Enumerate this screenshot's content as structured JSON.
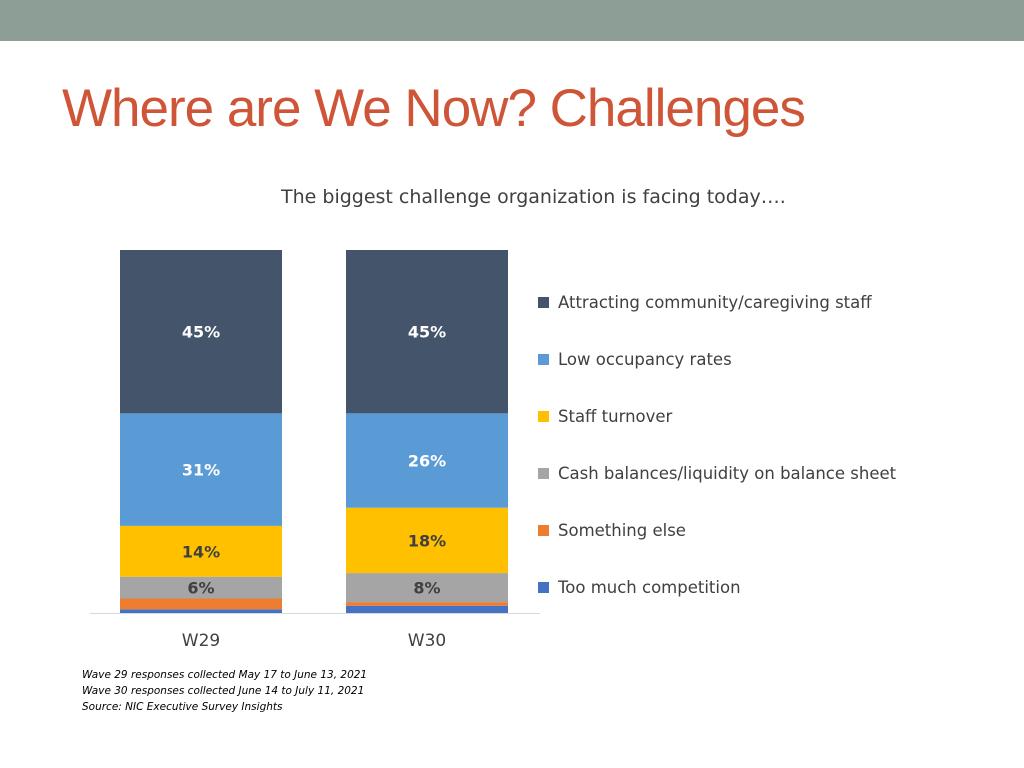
{
  "slide": {
    "title": "Where are We Now?  Challenges"
  },
  "notes": [
    "Wave 29  responses collected May 17 to June 13, 2021",
    "Wave 30  responses collected June 14  to July 11, 2021",
    "Source: NIC Executive Survey Insights"
  ],
  "colors": {
    "band": "#8d9e96",
    "title": "#cf5538"
  },
  "chart_data": {
    "type": "bar",
    "stacked": true,
    "title": "The biggest challenge organization is facing today….",
    "categories": [
      "W29",
      "W30"
    ],
    "ylim": [
      0,
      100
    ],
    "grid": false,
    "legend_position": "right",
    "series": [
      {
        "name": "Too much competition",
        "color": "#4472c4",
        "values": [
          1,
          2
        ],
        "labels": [
          "",
          ""
        ]
      },
      {
        "name": "Something else",
        "color": "#ed7d31",
        "values": [
          3,
          1
        ],
        "labels": [
          "",
          ""
        ]
      },
      {
        "name": "Cash balances/liquidity on balance sheet",
        "color": "#a5a5a5",
        "values": [
          6,
          8
        ],
        "labels": [
          "6%",
          "8%"
        ]
      },
      {
        "name": "Staff turnover",
        "color": "#ffc000",
        "values": [
          14,
          18
        ],
        "labels": [
          "14%",
          "18%"
        ]
      },
      {
        "name": "Low occupancy rates",
        "color": "#5b9bd5",
        "values": [
          31,
          26
        ],
        "labels": [
          "31%",
          "26%"
        ]
      },
      {
        "name": "Attracting community/caregiving staff",
        "color": "#44546a",
        "values": [
          45,
          45
        ],
        "labels": [
          "45%",
          "45%"
        ]
      }
    ]
  }
}
